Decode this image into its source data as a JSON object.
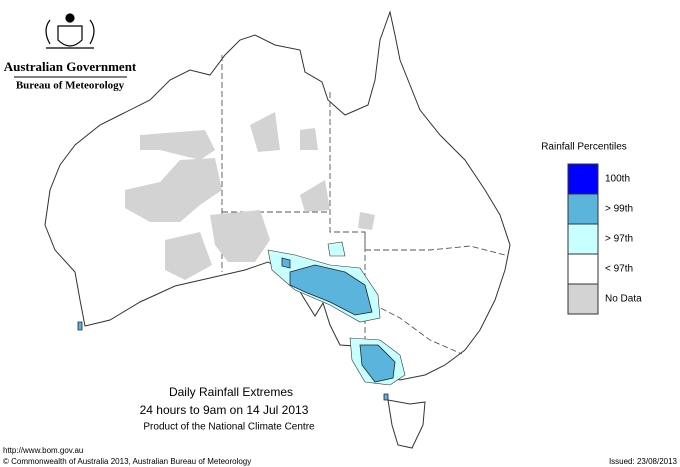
{
  "header": {
    "agency": "Australian Government",
    "bureau": "Bureau of Meteorology"
  },
  "legend": {
    "title": "Rainfall Percentiles",
    "items": [
      {
        "label": "100th",
        "color": "#0000ff"
      },
      {
        "label": "> 99th",
        "color": "#5ab4dc"
      },
      {
        "label": "> 97th",
        "color": "#c8ffff"
      },
      {
        "label": "< 97th",
        "color": "#ffffff"
      },
      {
        "label": "No Data",
        "color": "#d3d3d3"
      }
    ]
  },
  "caption": {
    "title": "Daily Rainfall Extremes",
    "period": "24 hours to 9am on 14 Jul 2013",
    "product": "Product of the National Climate Centre"
  },
  "footer": {
    "url": "http://www.bom.gov.au",
    "copyright": "© Commonwealth of Australia 2013, Australian Bureau of Meteorology",
    "issued": "Issued: 23/08/2013"
  }
}
